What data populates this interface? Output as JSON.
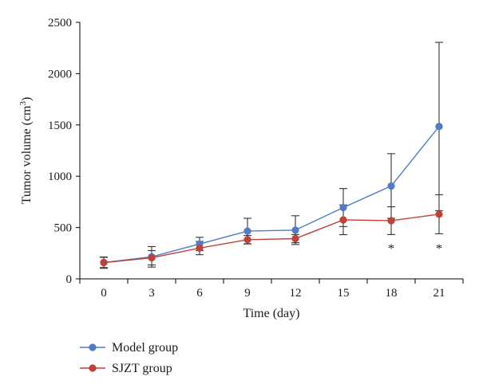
{
  "chart_data": {
    "type": "line",
    "xlabel": "Time (day)",
    "ylabel": "Tumor volume (cm",
    "ylabel_sup": "3",
    "ylabel_close": ")",
    "x": [
      0,
      3,
      6,
      9,
      12,
      15,
      18,
      21
    ],
    "ylim": [
      0,
      2500
    ],
    "yticks": [
      0,
      500,
      1000,
      1500,
      2000,
      2500
    ],
    "grid": false,
    "legend_position": "bottom-left",
    "series": [
      {
        "name": "Model group",
        "color": "#4f7bc7",
        "values": [
          160,
          215,
          340,
          465,
          475,
          695,
          905,
          1485
        ],
        "error": [
          50,
          100,
          65,
          125,
          140,
          185,
          315,
          820
        ]
      },
      {
        "name": "SJZT group",
        "color": "#c0403a",
        "values": [
          158,
          205,
          300,
          382,
          392,
          575,
          567,
          630
        ],
        "error": [
          55,
          70,
          65,
          40,
          40,
          145,
          135,
          190
        ]
      }
    ],
    "annotations": [
      {
        "x": 18,
        "text": "*"
      },
      {
        "x": 21,
        "text": "*"
      }
    ]
  }
}
